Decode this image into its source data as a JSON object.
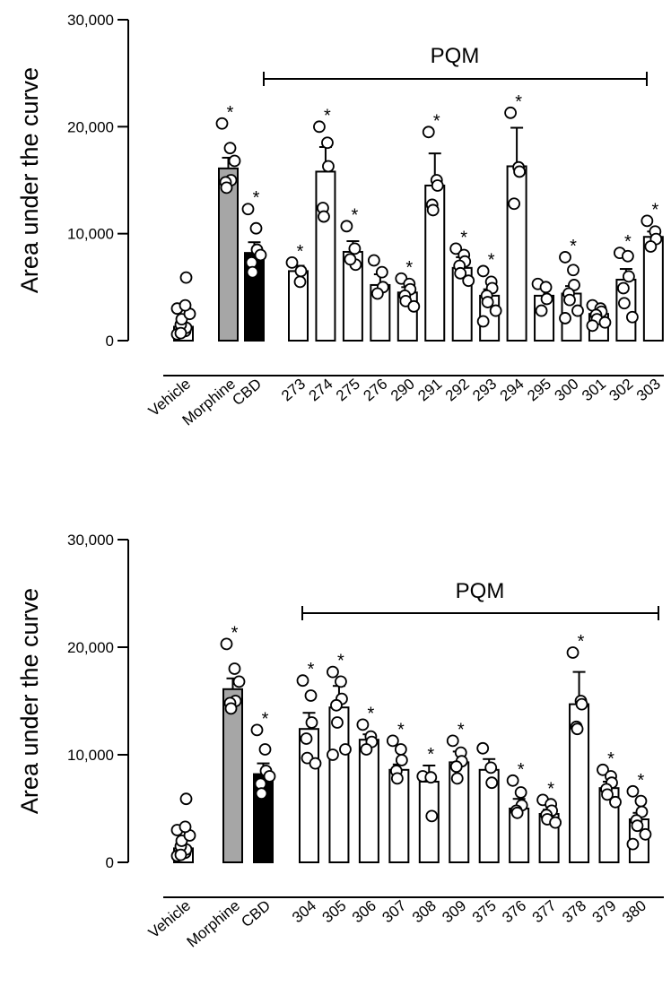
{
  "chart_data": [
    {
      "type": "bar",
      "ylabel": "Area under the curve",
      "ylim": [
        0,
        30000
      ],
      "yticks": [
        "0",
        "10,000",
        "20,000",
        "30,000"
      ],
      "group_label": "PQM",
      "categories": [
        "Vehicle",
        "Morphine",
        "CBD",
        "273",
        "274",
        "275",
        "276",
        "290",
        "291",
        "292",
        "293",
        "294",
        "295",
        "300",
        "301",
        "302",
        "303"
      ],
      "fill_colors": [
        "#ffffff",
        "#a6a6a6",
        "#000000"
      ],
      "bars": [
        {
          "label": "Vehicle",
          "value": 1300,
          "sem": 0,
          "sig": false,
          "points": [
            600,
            900,
            1200,
            1500,
            2000,
            2500,
            3000,
            3300,
            5900,
            700
          ]
        },
        {
          "label": "Morphine",
          "value": 16100,
          "sem": 1000,
          "sig": true,
          "points": [
            20300,
            18000,
            15000,
            14800,
            14300,
            16800
          ]
        },
        {
          "label": "CBD",
          "value": 8200,
          "sem": 1000,
          "sig": true,
          "points": [
            12300,
            10500,
            8500,
            7300,
            6400,
            8000
          ]
        },
        {
          "label": "273",
          "value": 6500,
          "sem": 500,
          "sig": true,
          "points": [
            7300,
            5500,
            6500
          ]
        },
        {
          "label": "274",
          "value": 15800,
          "sem": 2300,
          "sig": true,
          "points": [
            20000,
            18500,
            16300,
            12400,
            11600
          ]
        },
        {
          "label": "275",
          "value": 8300,
          "sem": 1000,
          "sig": true,
          "points": [
            10700,
            8600,
            7100,
            7600
          ]
        },
        {
          "label": "276",
          "value": 5200,
          "sem": 1000,
          "sig": false,
          "points": [
            7500,
            6400,
            5000,
            4400
          ]
        },
        {
          "label": "290",
          "value": 4500,
          "sem": 500,
          "sig": true,
          "points": [
            5800,
            5300,
            4800,
            4200,
            3700,
            3200
          ]
        },
        {
          "label": "291",
          "value": 14500,
          "sem": 3000,
          "sig": true,
          "points": [
            19500,
            15000,
            14500,
            12700,
            12200
          ]
        },
        {
          "label": "292",
          "value": 6800,
          "sem": 1000,
          "sig": true,
          "points": [
            8600,
            8000,
            7400,
            7000,
            6300,
            5600
          ]
        },
        {
          "label": "293",
          "value": 4200,
          "sem": 600,
          "sig": true,
          "points": [
            6500,
            5500,
            4900,
            4200,
            3600,
            2800,
            1800
          ]
        },
        {
          "label": "294",
          "value": 16300,
          "sem": 3600,
          "sig": true,
          "points": [
            21300,
            16200,
            15800,
            12800
          ]
        },
        {
          "label": "295",
          "value": 4200,
          "sem": 700,
          "sig": false,
          "points": [
            5300,
            5000,
            3900,
            2800
          ]
        },
        {
          "label": "300",
          "value": 4400,
          "sem": 700,
          "sig": true,
          "points": [
            7800,
            6600,
            5200,
            4400,
            3800,
            2800,
            2100
          ]
        },
        {
          "label": "301",
          "value": 2500,
          "sem": 500,
          "sig": false,
          "points": [
            3300,
            3000,
            2700,
            2400,
            2000,
            1700,
            1400
          ]
        },
        {
          "label": "302",
          "value": 5700,
          "sem": 1000,
          "sig": true,
          "points": [
            8200,
            7900,
            6000,
            4900,
            3500,
            2200
          ]
        },
        {
          "label": "303",
          "value": 9700,
          "sem": 500,
          "sig": true,
          "points": [
            11200,
            10200,
            9500,
            8800
          ]
        }
      ]
    },
    {
      "type": "bar",
      "ylabel": "Area under the curve",
      "ylim": [
        0,
        30000
      ],
      "yticks": [
        "0",
        "10,000",
        "20,000",
        "30,000"
      ],
      "group_label": "PQM",
      "categories": [
        "Vehicle",
        "Morphine",
        "CBD",
        "304",
        "305",
        "306",
        "307",
        "308",
        "309",
        "375",
        "376",
        "377",
        "378",
        "379",
        "380"
      ],
      "fill_colors": [
        "#ffffff",
        "#a6a6a6",
        "#000000"
      ],
      "bars": [
        {
          "label": "Vehicle",
          "value": 1300,
          "sem": 0,
          "sig": false,
          "points": [
            600,
            900,
            1200,
            1500,
            2000,
            2500,
            3000,
            3300,
            5900,
            700
          ]
        },
        {
          "label": "Morphine",
          "value": 16100,
          "sem": 1000,
          "sig": true,
          "points": [
            20300,
            18000,
            15000,
            14800,
            14300,
            16800
          ]
        },
        {
          "label": "CBD",
          "value": 8200,
          "sem": 1000,
          "sig": true,
          "points": [
            12300,
            10500,
            8500,
            7300,
            6400,
            8000
          ]
        },
        {
          "label": "304",
          "value": 12400,
          "sem": 1500,
          "sig": true,
          "points": [
            16900,
            15500,
            13000,
            11500,
            9700,
            9200
          ]
        },
        {
          "label": "305",
          "value": 14400,
          "sem": 2000,
          "sig": true,
          "points": [
            17700,
            16800,
            15200,
            14600,
            13000,
            10500,
            10000
          ]
        },
        {
          "label": "306",
          "value": 11400,
          "sem": 500,
          "sig": true,
          "points": [
            12800,
            11700,
            11200,
            10500
          ]
        },
        {
          "label": "307",
          "value": 8600,
          "sem": 500,
          "sig": true,
          "points": [
            11300,
            10500,
            9500,
            8500,
            7800
          ]
        },
        {
          "label": "308",
          "value": 7500,
          "sem": 1500,
          "sig": true,
          "points": [
            8000,
            7900,
            4300
          ]
        },
        {
          "label": "309",
          "value": 9300,
          "sem": 1000,
          "sig": true,
          "points": [
            11300,
            10200,
            9400,
            8900,
            7800
          ]
        },
        {
          "label": "375",
          "value": 8600,
          "sem": 1000,
          "sig": false,
          "points": [
            10600,
            8800,
            7400
          ]
        },
        {
          "label": "376",
          "value": 5000,
          "sem": 900,
          "sig": true,
          "points": [
            7600,
            6500,
            5300,
            4800,
            4600
          ]
        },
        {
          "label": "377",
          "value": 4500,
          "sem": 400,
          "sig": true,
          "points": [
            5800,
            5400,
            4800,
            4400,
            4000,
            3700
          ]
        },
        {
          "label": "378",
          "value": 14700,
          "sem": 3000,
          "sig": true,
          "points": [
            19500,
            15000,
            14700,
            12600,
            12400
          ]
        },
        {
          "label": "379",
          "value": 6900,
          "sem": 600,
          "sig": true,
          "points": [
            8600,
            8000,
            7400,
            6800,
            6300,
            5600
          ]
        },
        {
          "label": "380",
          "value": 4000,
          "sem": 600,
          "sig": true,
          "points": [
            6600,
            5700,
            4700,
            3900,
            3400,
            2600,
            1700
          ]
        }
      ]
    }
  ]
}
